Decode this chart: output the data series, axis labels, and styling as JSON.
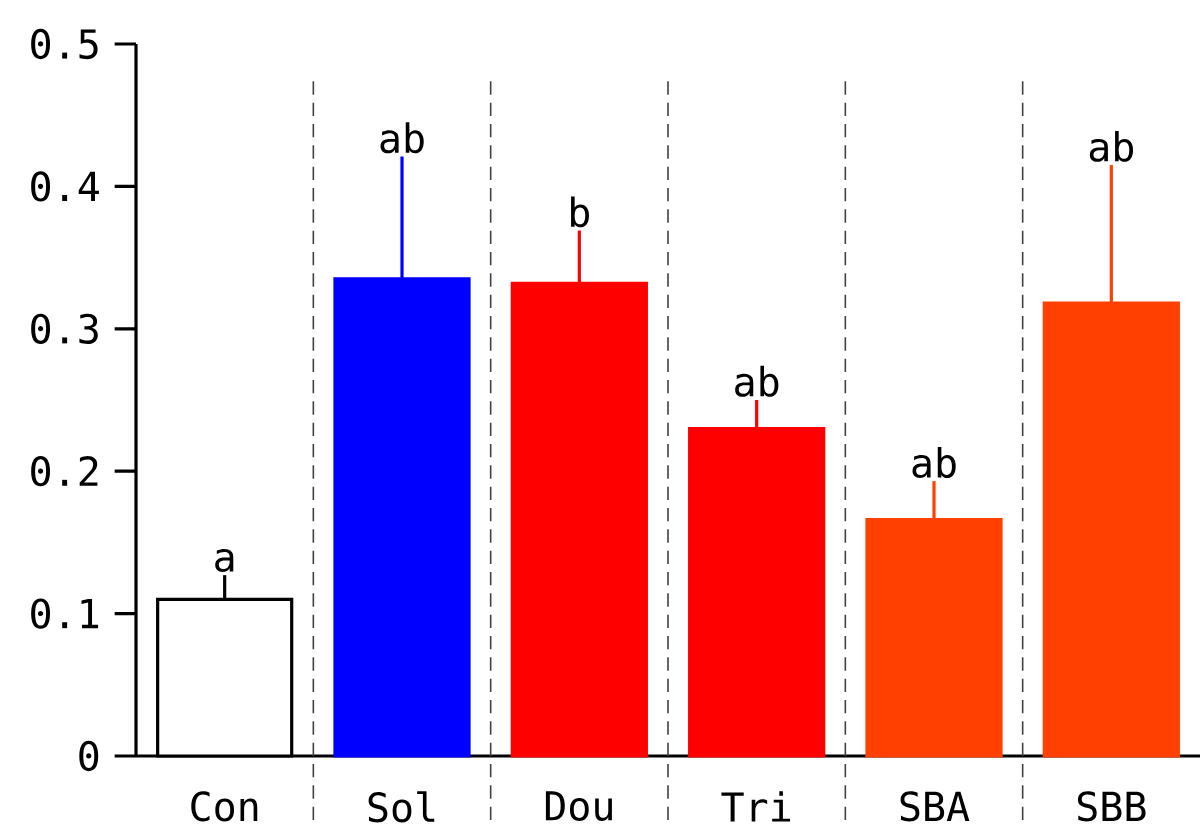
{
  "chart_data": {
    "type": "bar",
    "categories": [
      "Con",
      "Sol",
      "Dou",
      "Tri",
      "SBA",
      "SBB"
    ],
    "values": [
      0.11,
      0.335,
      0.332,
      0.23,
      0.166,
      0.318
    ],
    "errors": [
      [
        0.11,
        0.127
      ],
      [
        0.335,
        0.421
      ],
      [
        0.332,
        0.369
      ],
      [
        0.23,
        0.25
      ],
      [
        0.166,
        0.193
      ],
      [
        0.318,
        0.415
      ]
    ],
    "colors": [
      "#ffffff",
      "#0000ff",
      "#ff0000",
      "#ff0000",
      "#ff4000",
      "#ff4000"
    ],
    "ylim": [
      0,
      0.5
    ],
    "yticks": [
      0,
      0.1,
      0.2,
      0.3,
      0.4,
      0.5
    ],
    "annotations": [
      "a",
      "ab",
      "b",
      "ab",
      "ab",
      "ab"
    ]
  }
}
